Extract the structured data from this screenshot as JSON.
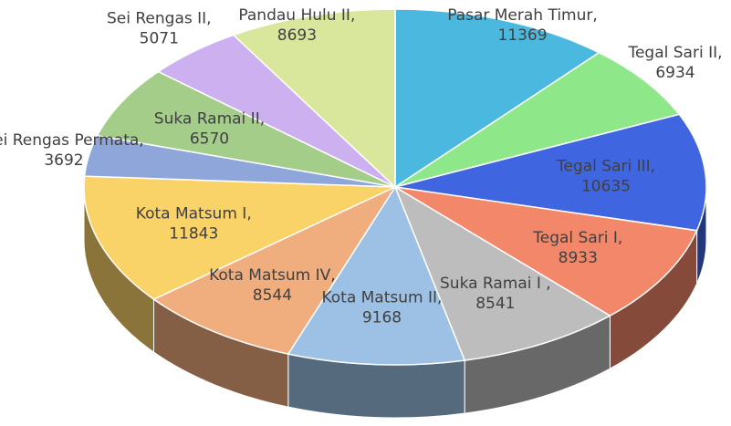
{
  "chart_data": {
    "type": "pie3d",
    "categories": [
      "Pasar Merah Timur,",
      "Tegal Sari II,",
      "Tegal Sari III,",
      "Tegal Sari I,",
      "Suka Ramai I ,",
      "Kota Matsum II,",
      "Kota Matsum IV,",
      "Kota Matsum I,",
      "Sei Rengas Permata,",
      "Suka Ramai II,",
      "Sei Rengas II,",
      "Pandau Hulu II,"
    ],
    "values": [
      11369,
      6934,
      10635,
      8933,
      8541,
      9168,
      8544,
      11843,
      3692,
      6570,
      5071,
      8693
    ],
    "colors": [
      "#4bb8e0",
      "#8ee88a",
      "#3f66e0",
      "#f2876a",
      "#bdbdbd",
      "#9dc1e5",
      "#f0ad7e",
      "#fad368",
      "#8ea6d9",
      "#a4cd8a",
      "#cdb0ef",
      "#d9e79c"
    ]
  }
}
